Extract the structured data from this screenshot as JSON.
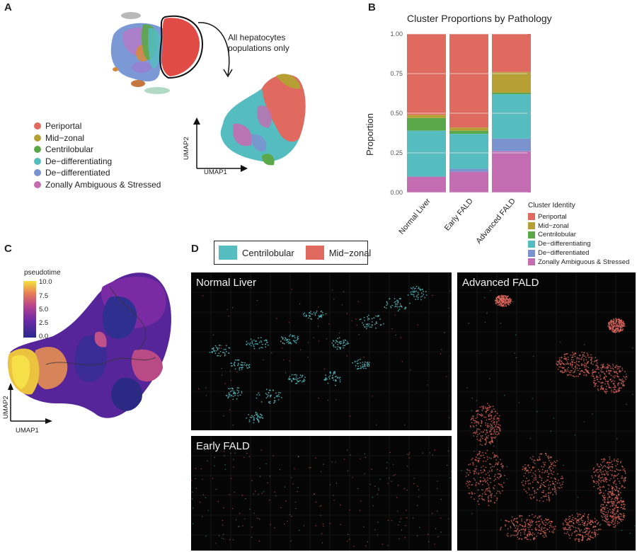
{
  "panels": {
    "a": "A",
    "b": "B",
    "c": "C",
    "d": "D"
  },
  "panel_a": {
    "annotation_line1": "All hepatocytes",
    "annotation_line2": "populations only",
    "umap_x": "UMAP1",
    "umap_y": "UMAP2",
    "legend": [
      {
        "label": "Periportal",
        "color": "#e16a60"
      },
      {
        "label": "Mid−zonal",
        "color": "#b6a035"
      },
      {
        "label": "Centrilobular",
        "color": "#5aa84a"
      },
      {
        "label": "De−differentiating",
        "color": "#55bcbf"
      },
      {
        "label": "De−differentiated",
        "color": "#7a93cf"
      },
      {
        "label": "Zonally Ambiguous & Stressed",
        "color": "#c46db2"
      }
    ]
  },
  "chart_data": {
    "type": "bar",
    "stacked": true,
    "title": "Cluster Proportions by Pathology",
    "ylabel": "Proportion",
    "xlabel": "",
    "ylim": [
      0,
      1
    ],
    "yticks": [
      "0.00",
      "0.25",
      "0.50",
      "0.75",
      "1.00"
    ],
    "categories": [
      "Normal Liver",
      "Early FALD",
      "Advanced FALD"
    ],
    "legend_title": "Cluster Identity",
    "legend_placement": "right",
    "series": [
      {
        "name": "Zonally Ambiguous & Stressed",
        "color": "#c46db2",
        "values": [
          0.1,
          0.13,
          0.26
        ]
      },
      {
        "name": "De−differentiated",
        "color": "#7a93cf",
        "values": [
          0.0,
          0.02,
          0.08
        ]
      },
      {
        "name": "De−differentiating",
        "color": "#55bcbf",
        "values": [
          0.29,
          0.22,
          0.28
        ]
      },
      {
        "name": "Centrilobular",
        "color": "#5aa84a",
        "values": [
          0.08,
          0.02,
          0.01
        ]
      },
      {
        "name": "Mid−zonal",
        "color": "#b6a035",
        "values": [
          0.02,
          0.02,
          0.13
        ]
      },
      {
        "name": "Periportal",
        "color": "#e16a60",
        "values": [
          0.51,
          0.59,
          0.24
        ]
      }
    ],
    "legend_order": [
      "Periportal",
      "Mid−zonal",
      "Centrilobular",
      "De−differentiating",
      "De−differentiated",
      "Zonally Ambiguous & Stressed"
    ]
  },
  "panel_c": {
    "colorbar_title": "pseudotime",
    "colorbar_ticks": [
      "10.0",
      "7.5",
      "5.0",
      "2.5",
      "0.0"
    ],
    "umap_x": "UMAP1",
    "umap_y": "UMAP2"
  },
  "panel_d": {
    "legend": [
      {
        "label": "Centrilobular",
        "color": "#55bcbf"
      },
      {
        "label": "Mid−zonal",
        "color": "#e16a60"
      }
    ],
    "sections": {
      "normal": "Normal Liver",
      "early": "Early FALD",
      "advanced": "Advanced FALD"
    }
  }
}
